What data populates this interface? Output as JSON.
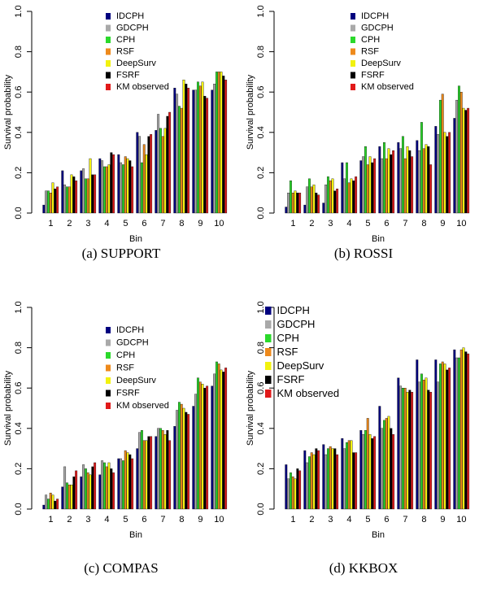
{
  "series_names": [
    "IDCPH",
    "GDCPH",
    "CPH",
    "RSF",
    "DeepSurv",
    "FSRF",
    "KM observed"
  ],
  "series_colors": [
    "#00007f",
    "#a9a9a9",
    "#2bd92b",
    "#ee8a1c",
    "#f2f20e",
    "#000000",
    "#e11a1a"
  ],
  "chart_data": [
    {
      "type": "bar",
      "caption": "(a) SUPPORT",
      "xlabel": "Bin",
      "ylabel": "Survival probability",
      "ylim": [
        0,
        1.0
      ],
      "yticks": [
        "0.0",
        "0.2",
        "0.4",
        "0.6",
        "0.8",
        "1.0"
      ],
      "categories": [
        "1",
        "2",
        "3",
        "4",
        "5",
        "6",
        "7",
        "8",
        "9",
        "10"
      ],
      "legend_position": "top-right",
      "series": [
        {
          "name": "IDCPH",
          "values": [
            0.04,
            0.21,
            0.21,
            0.27,
            0.29,
            0.4,
            0.41,
            0.62,
            0.61,
            0.61
          ]
        },
        {
          "name": "GDCPH",
          "values": [
            0.11,
            0.14,
            0.22,
            0.26,
            0.25,
            0.38,
            0.49,
            0.59,
            0.61,
            0.64
          ]
        },
        {
          "name": "CPH",
          "values": [
            0.11,
            0.13,
            0.17,
            0.23,
            0.24,
            0.25,
            0.42,
            0.53,
            0.65,
            0.7
          ]
        },
        {
          "name": "RSF",
          "values": [
            0.1,
            0.13,
            0.17,
            0.23,
            0.28,
            0.34,
            0.38,
            0.52,
            0.63,
            0.7
          ]
        },
        {
          "name": "DeepSurv",
          "values": [
            0.15,
            0.19,
            0.27,
            0.24,
            0.27,
            0.29,
            0.42,
            0.66,
            0.65,
            0.7
          ]
        },
        {
          "name": "FSRF",
          "values": [
            0.12,
            0.18,
            0.19,
            0.3,
            0.26,
            0.38,
            0.48,
            0.64,
            0.58,
            0.68
          ]
        },
        {
          "name": "KM observed",
          "values": [
            0.13,
            0.16,
            0.19,
            0.29,
            0.23,
            0.39,
            0.5,
            0.62,
            0.57,
            0.66
          ]
        }
      ]
    },
    {
      "type": "bar",
      "caption": "(b) ROSSI",
      "xlabel": "Bin",
      "ylabel": "Survival probability",
      "ylim": [
        0,
        1.0
      ],
      "yticks": [
        "0.0",
        "0.2",
        "0.4",
        "0.6",
        "0.8",
        "1.0"
      ],
      "categories": [
        "1",
        "2",
        "3",
        "4",
        "5",
        "6",
        "7",
        "8",
        "9",
        "10"
      ],
      "legend_position": "top-right",
      "series": [
        {
          "name": "IDCPH",
          "values": [
            0.03,
            0.04,
            0.05,
            0.25,
            0.26,
            0.33,
            0.35,
            0.36,
            0.43,
            0.47
          ]
        },
        {
          "name": "GDCPH",
          "values": [
            0.1,
            0.13,
            0.14,
            0.17,
            0.28,
            0.27,
            0.32,
            0.31,
            0.39,
            0.56
          ]
        },
        {
          "name": "CPH",
          "values": [
            0.16,
            0.17,
            0.18,
            0.25,
            0.33,
            0.35,
            0.38,
            0.45,
            0.56,
            0.63
          ]
        },
        {
          "name": "RSF",
          "values": [
            0.1,
            0.13,
            0.16,
            0.15,
            0.24,
            0.27,
            0.27,
            0.32,
            0.59,
            0.6
          ]
        },
        {
          "name": "DeepSurv",
          "values": [
            0.11,
            0.14,
            0.17,
            0.17,
            0.28,
            0.32,
            0.33,
            0.34,
            0.4,
            0.52
          ]
        },
        {
          "name": "FSRF",
          "values": [
            0.1,
            0.1,
            0.11,
            0.16,
            0.25,
            0.29,
            0.31,
            0.33,
            0.38,
            0.51
          ]
        },
        {
          "name": "KM observed",
          "values": [
            0.1,
            0.09,
            0.12,
            0.18,
            0.27,
            0.31,
            0.28,
            0.24,
            0.4,
            0.52
          ]
        }
      ]
    },
    {
      "type": "bar",
      "caption": "(c) COMPAS",
      "xlabel": "Bin",
      "ylabel": "Survival probability",
      "ylim": [
        0,
        1.0
      ],
      "yticks": [
        "0.0",
        "0.2",
        "0.4",
        "0.6",
        "0.8",
        "1.0"
      ],
      "categories": [
        "1",
        "2",
        "3",
        "4",
        "5",
        "6",
        "7",
        "8",
        "9",
        "10"
      ],
      "legend_position": "top-right",
      "series": [
        {
          "name": "IDCPH",
          "values": [
            0.02,
            0.11,
            0.16,
            0.17,
            0.25,
            0.3,
            0.36,
            0.41,
            0.51,
            0.61
          ]
        },
        {
          "name": "GDCPH",
          "values": [
            0.07,
            0.21,
            0.22,
            0.24,
            0.25,
            0.38,
            0.4,
            0.49,
            0.57,
            0.67
          ]
        },
        {
          "name": "CPH",
          "values": [
            0.05,
            0.13,
            0.2,
            0.23,
            0.24,
            0.39,
            0.4,
            0.53,
            0.65,
            0.73
          ]
        },
        {
          "name": "RSF",
          "values": [
            0.08,
            0.12,
            0.18,
            0.21,
            0.29,
            0.34,
            0.39,
            0.52,
            0.63,
            0.72
          ]
        },
        {
          "name": "DeepSurv",
          "values": [
            0.07,
            0.12,
            0.17,
            0.23,
            0.28,
            0.34,
            0.37,
            0.5,
            0.62,
            0.69
          ]
        },
        {
          "name": "FSRF",
          "values": [
            0.04,
            0.16,
            0.21,
            0.2,
            0.27,
            0.36,
            0.39,
            0.48,
            0.6,
            0.68
          ]
        },
        {
          "name": "KM observed",
          "values": [
            0.05,
            0.19,
            0.23,
            0.18,
            0.25,
            0.36,
            0.34,
            0.47,
            0.61,
            0.7
          ]
        }
      ]
    },
    {
      "type": "bar",
      "caption": "(d) KKBOX",
      "xlabel": "Bin",
      "ylabel": "Survival probability",
      "ylim": [
        0,
        1.0
      ],
      "yticks": [
        "0.0",
        "0.2",
        "0.4",
        "0.6",
        "0.8",
        "1.0"
      ],
      "categories": [
        "1",
        "2",
        "3",
        "4",
        "5",
        "6",
        "7",
        "8",
        "9",
        "10"
      ],
      "legend_position": "top-left",
      "series": [
        {
          "name": "IDCPH",
          "values": [
            0.22,
            0.29,
            0.32,
            0.35,
            0.39,
            0.51,
            0.65,
            0.74,
            0.74,
            0.79
          ]
        },
        {
          "name": "GDCPH",
          "values": [
            0.15,
            0.23,
            0.27,
            0.3,
            0.37,
            0.4,
            0.61,
            0.63,
            0.63,
            0.75
          ]
        },
        {
          "name": "CPH",
          "values": [
            0.18,
            0.26,
            0.3,
            0.33,
            0.39,
            0.44,
            0.6,
            0.67,
            0.72,
            0.75
          ]
        },
        {
          "name": "RSF",
          "values": [
            0.16,
            0.28,
            0.31,
            0.34,
            0.45,
            0.45,
            0.6,
            0.64,
            0.73,
            0.79
          ]
        },
        {
          "name": "DeepSurv",
          "values": [
            0.15,
            0.27,
            0.3,
            0.34,
            0.37,
            0.46,
            0.58,
            0.65,
            0.72,
            0.8
          ]
        },
        {
          "name": "FSRF",
          "values": [
            0.2,
            0.3,
            0.3,
            0.28,
            0.35,
            0.4,
            0.59,
            0.59,
            0.69,
            0.78
          ]
        },
        {
          "name": "KM observed",
          "values": [
            0.19,
            0.29,
            0.27,
            0.28,
            0.36,
            0.37,
            0.58,
            0.58,
            0.7,
            0.77
          ]
        }
      ]
    }
  ]
}
